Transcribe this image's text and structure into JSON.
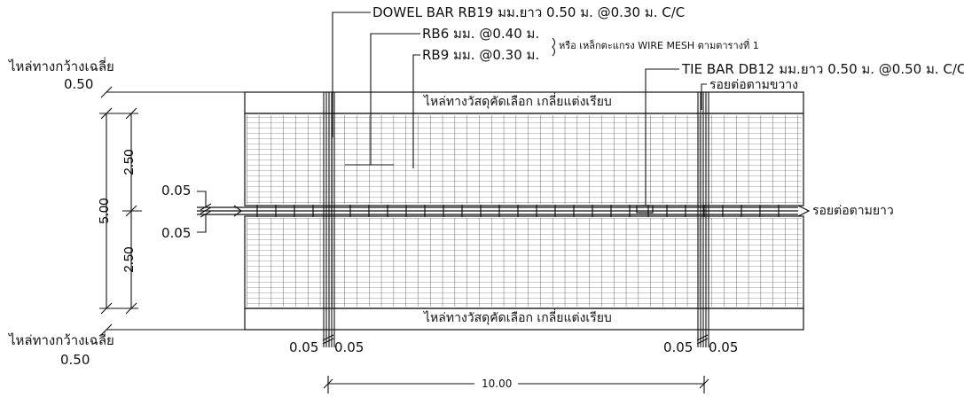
{
  "annotations": {
    "dowel_bar": "DOWEL BAR RB19 มม.ยาว 0.50 ม. @0.30 ม. C/C",
    "rb6": "RB6 มม. @0.40 ม.",
    "rb9": "RB9 มม. @0.30 ม.",
    "wire_mesh": "หรือ เหล็กตะแกรง WIRE MESH ตามตารางที่ 1",
    "tie_bar": "TIE BAR DB12 มม.ยาว 0.50 ม. @0.50 ม. C/C",
    "transverse_joint": "รอยต่อตามขวาง",
    "longitudinal_joint": "รอยต่อตามยาว",
    "shoulder_label_top": "ไหล่ทางกว้างเฉลี่ย",
    "shoulder_width_top": "0.50",
    "shoulder_label_bottom": "ไหล่ทางกว้างเฉลี่ย",
    "shoulder_width_bottom": "0.50",
    "shoulder_material_top": "ไหล่ทางวัสดุคัดเลือก เกลี่ยแต่งเรียบ",
    "shoulder_material_bottom": "ไหล่ทางวัสดุคัดเลือก เกลี่ยแต่งเรียบ"
  },
  "dimensions": {
    "lane_top": "2.50",
    "lane_bottom": "2.50",
    "total_width": "5.00",
    "gap_top": "0.05",
    "gap_bottom": "0.05",
    "joint_left_a": "0.05",
    "joint_left_b": "0.05",
    "joint_right_a": "0.05",
    "joint_right_b": "0.05",
    "slab_length": "10.00"
  }
}
